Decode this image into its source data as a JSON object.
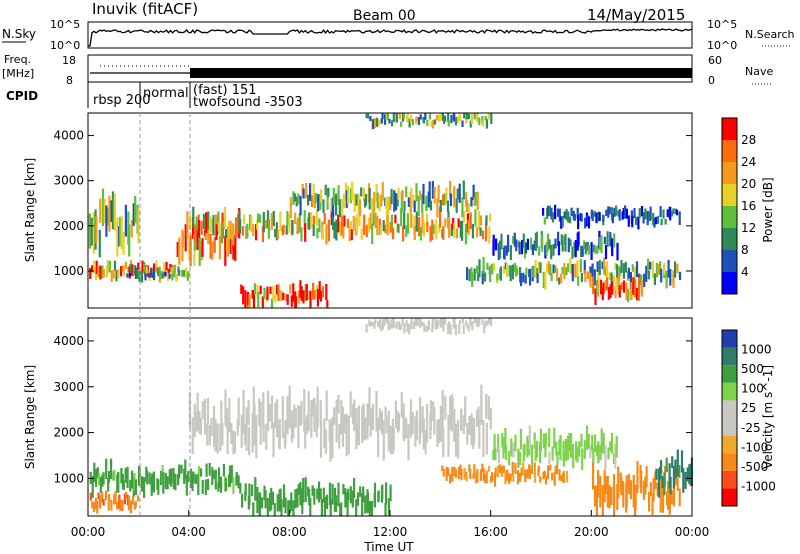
{
  "header": {
    "station": "Inuvik (fitACF)",
    "beam": "Beam 00",
    "date": "14/May/2015"
  },
  "top_panels": {
    "nsky_label": "N.Sky",
    "nsearch_label": "N.Search",
    "nsky_ticks": [
      "10^5",
      "10^0"
    ],
    "nsearch_ticks": [
      "10^5",
      "10^0"
    ],
    "freq_label_1": "Freq.",
    "freq_label_2": "[MHz]",
    "freq_ticks": [
      "18",
      "8"
    ],
    "nave_label": "Nave",
    "nave_ticks": [
      "60",
      "0"
    ],
    "cpid_label": "CPID",
    "cpid_segments": [
      "rbsp 200",
      "normal",
      "(fast) 151",
      "twofsound -3503"
    ]
  },
  "colors": {
    "power_scale": [
      "#0000ff",
      "#1f4fb8",
      "#2e8b57",
      "#5fbf3a",
      "#e8d22a",
      "#f59a1c",
      "#ff6a10",
      "#ff0000"
    ],
    "velocity_scale": [
      "#ff0000",
      "#ff4a1a",
      "#f58a18",
      "#f2a830",
      "#c8c8c0",
      "#c8c8c0",
      "#7dd34a",
      "#3f9f3f",
      "#2e7d6b",
      "#1f3fb0"
    ]
  },
  "chart_data": [
    {
      "type": "heatmap",
      "name": "power",
      "ylabel": "Slant Range [km]",
      "ylim": [
        180,
        4500
      ],
      "y_ticks": [
        "1000",
        "2000",
        "3000",
        "4000"
      ],
      "xlim_hours": [
        0,
        24
      ],
      "colorbar_label": "Power [dB]",
      "colorbar_ticks": [
        "4",
        "8",
        "12",
        "16",
        "20",
        "24",
        "28"
      ],
      "colorbar_range": [
        0,
        30
      ],
      "bands": [
        {
          "t0": 0.0,
          "t1": 3.5,
          "r0": 800,
          "r1": 1200,
          "v": 22
        },
        {
          "t0": 0.0,
          "t1": 2.0,
          "r0": 1400,
          "r1": 2600,
          "v": 12
        },
        {
          "t0": 1.5,
          "t1": 4.0,
          "r0": 800,
          "r1": 1100,
          "v": 10
        },
        {
          "t0": 3.5,
          "t1": 6.0,
          "r0": 1300,
          "r1": 2200,
          "v": 24
        },
        {
          "t0": 4.0,
          "t1": 16.0,
          "r0": 1700,
          "r1": 2300,
          "v": 18
        },
        {
          "t0": 8.0,
          "t1": 15.5,
          "r0": 2300,
          "r1": 2900,
          "v": 14
        },
        {
          "t0": 6.0,
          "t1": 9.5,
          "r0": 180,
          "r1": 700,
          "v": 26
        },
        {
          "t0": 15.0,
          "t1": 23.5,
          "r0": 700,
          "r1": 1200,
          "v": 12
        },
        {
          "t0": 20.0,
          "t1": 22.0,
          "r0": 300,
          "r1": 800,
          "v": 26
        },
        {
          "t0": 16.0,
          "t1": 21.0,
          "r0": 1300,
          "r1": 1800,
          "v": 8
        },
        {
          "t0": 18.0,
          "t1": 23.5,
          "r0": 2000,
          "r1": 2400,
          "v": 6
        },
        {
          "t0": 11.0,
          "t1": 16.0,
          "r0": 4200,
          "r1": 4500,
          "v": 12
        }
      ]
    },
    {
      "type": "heatmap",
      "name": "velocity",
      "ylabel": "Slant Range [km]",
      "ylim": [
        180,
        4500
      ],
      "y_ticks": [
        "1000",
        "2000",
        "3000",
        "4000"
      ],
      "xlabel": "Time UT",
      "x_ticks": [
        "00:00",
        "04:00",
        "08:00",
        "12:00",
        "16:00",
        "20:00",
        "00:00"
      ],
      "xlim_hours": [
        0,
        24
      ],
      "colorbar_label": "Velocity [m s^-1]",
      "colorbar_ticks": [
        "-1000",
        "-500",
        "-100",
        "-25",
        "25",
        "100",
        "500",
        "1000"
      ],
      "bands": [
        {
          "t0": 0.0,
          "t1": 2.0,
          "r0": 300,
          "r1": 700,
          "v": -400
        },
        {
          "t0": 0.0,
          "t1": 6.0,
          "r0": 700,
          "r1": 1300,
          "v": 150
        },
        {
          "t0": 4.0,
          "t1": 16.0,
          "r0": 1600,
          "r1": 2800,
          "v": 0
        },
        {
          "t0": 11.0,
          "t1": 16.0,
          "r0": 4200,
          "r1": 4500,
          "v": 0
        },
        {
          "t0": 6.0,
          "t1": 12.0,
          "r0": 180,
          "r1": 900,
          "v": 200
        },
        {
          "t0": 14.0,
          "t1": 19.0,
          "r0": 900,
          "r1": 1300,
          "v": -150
        },
        {
          "t0": 20.0,
          "t1": 23.5,
          "r0": 300,
          "r1": 1200,
          "v": -350
        },
        {
          "t0": 22.5,
          "t1": 24.0,
          "r0": 700,
          "r1": 1500,
          "v": 700
        },
        {
          "t0": 16.0,
          "t1": 21.0,
          "r0": 1300,
          "r1": 2000,
          "v": 40
        }
      ]
    }
  ]
}
